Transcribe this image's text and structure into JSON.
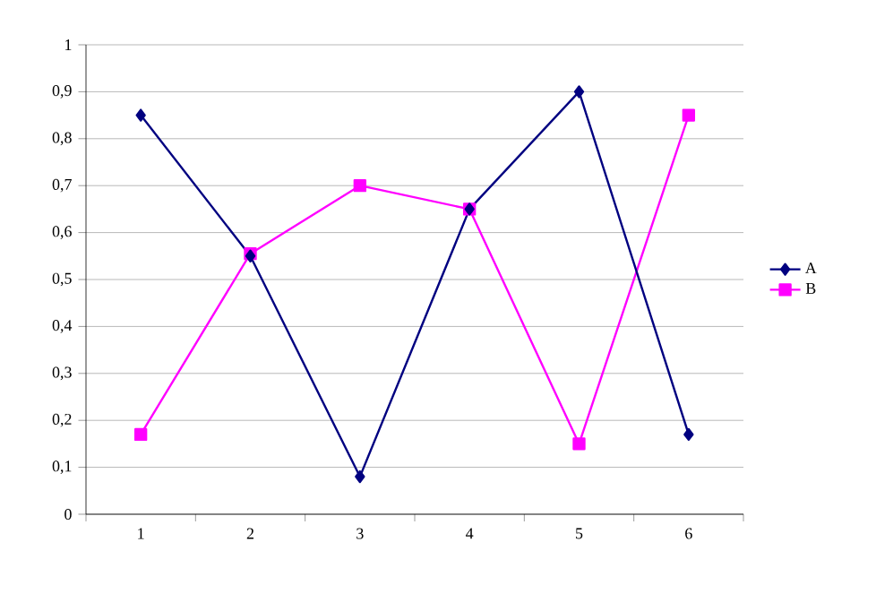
{
  "chart_data": {
    "type": "line",
    "categories": [
      "1",
      "2",
      "3",
      "4",
      "5",
      "6"
    ],
    "series": [
      {
        "name": "A",
        "color": "#000080",
        "marker": "diamond",
        "values": [
          0.85,
          0.55,
          0.08,
          0.65,
          0.9,
          0.17
        ]
      },
      {
        "name": "B",
        "color": "#ff00ff",
        "marker": "square",
        "values": [
          0.17,
          0.555,
          0.7,
          0.65,
          0.15,
          0.85
        ]
      }
    ],
    "ylim": [
      0,
      1
    ],
    "yticks": [
      0,
      {
        "value": 0.1,
        "label": "0,1"
      },
      {
        "value": 0.2,
        "label": "0,2"
      },
      {
        "value": 0.3,
        "label": "0,3"
      },
      {
        "value": 0.4,
        "label": "0,4"
      },
      {
        "value": 0.5,
        "label": "0,5"
      },
      {
        "value": 0.6,
        "label": "0,6"
      },
      {
        "value": 0.7,
        "label": "0,7"
      },
      {
        "value": 0.8,
        "label": "0,8"
      },
      {
        "value": 0.9,
        "label": "0,9"
      },
      1
    ],
    "grid": "y",
    "legend": "right",
    "line_style": "solid"
  }
}
